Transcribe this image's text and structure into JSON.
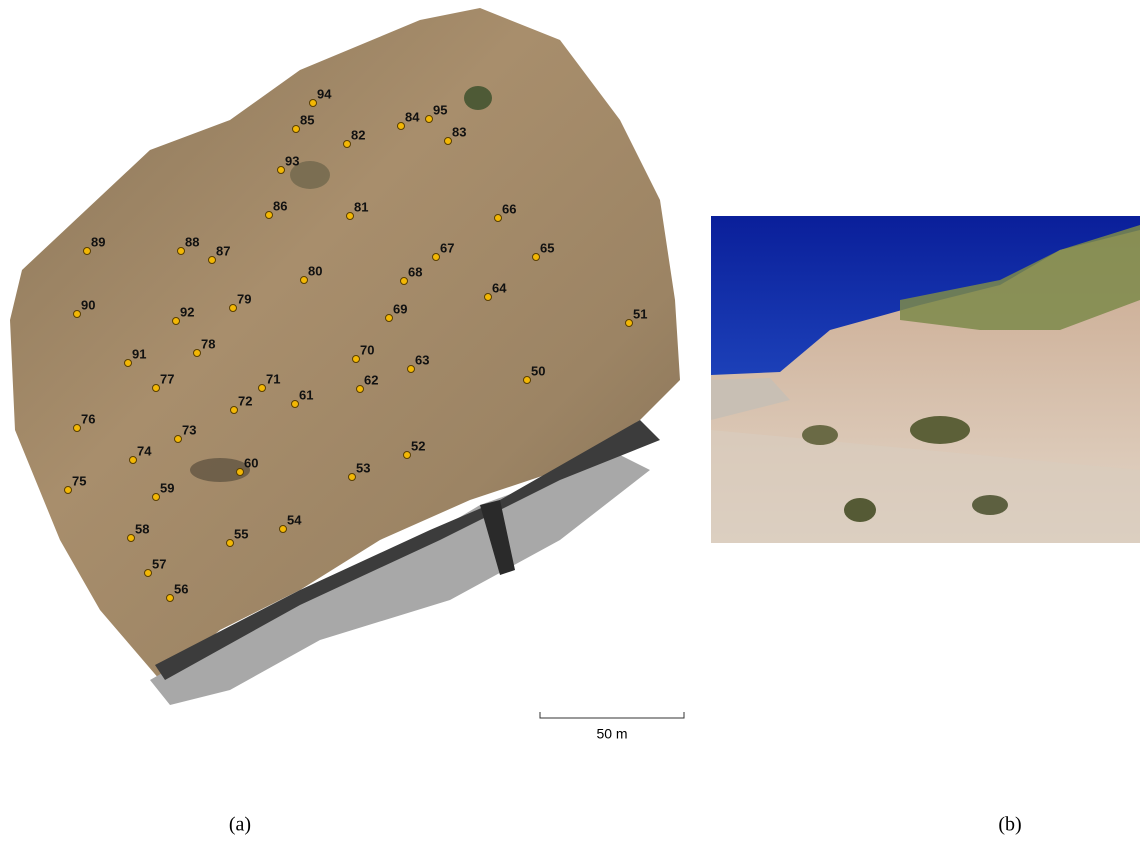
{
  "map": {
    "points": [
      "94",
      "85",
      "82",
      "84",
      "95",
      "83",
      "93",
      "86",
      "81",
      "66",
      "89",
      "88",
      "87",
      "67",
      "65",
      "80",
      "68",
      "64",
      "90",
      "92",
      "79",
      "69",
      "51",
      "78",
      "91",
      "70",
      "63",
      "50",
      "77",
      "71",
      "62",
      "61",
      "72",
      "76",
      "73",
      "52",
      "74",
      "60",
      "53",
      "75",
      "59",
      "54",
      "55",
      "58",
      "57",
      "56"
    ],
    "scale_bar": "50 m"
  },
  "captions": [
    "(a)",
    "(b)"
  ]
}
